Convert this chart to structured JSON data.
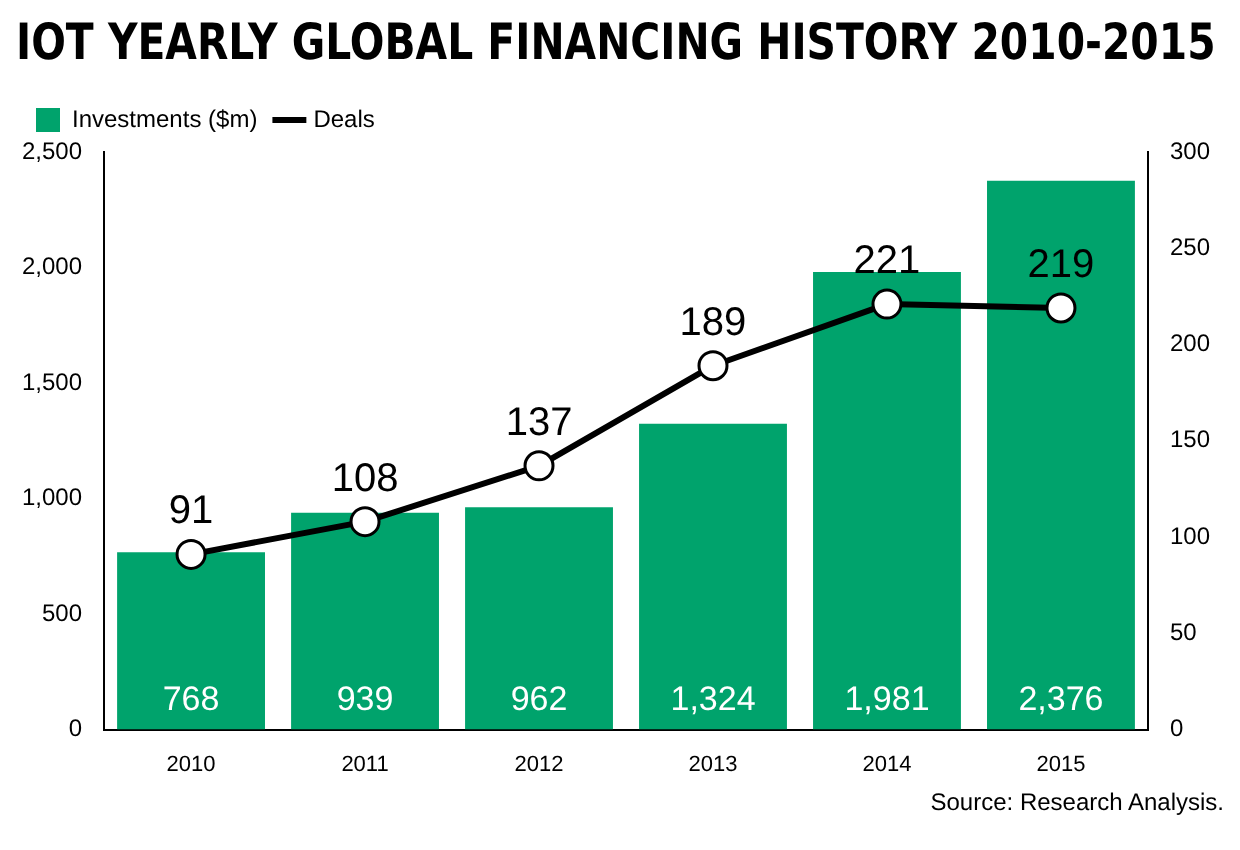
{
  "chart_data": {
    "type": "bar",
    "title": "IOT YEARLY GLOBAL FINANCING HISTORY 2010-2015",
    "categories": [
      "2010",
      "2011",
      "2012",
      "2013",
      "2014",
      "2015"
    ],
    "series": [
      {
        "name": "Investments ($m)",
        "color": "#00a36c",
        "values": [
          768,
          939,
          962,
          1324,
          1981,
          2376
        ],
        "value_labels": [
          "768",
          "939",
          "962",
          "1,324",
          "1,981",
          "2,376"
        ]
      },
      {
        "name": "Deals",
        "type": "line",
        "axis": "y2",
        "color": "#000000",
        "values": [
          91,
          108,
          137,
          189,
          221,
          219
        ],
        "value_labels": [
          "91",
          "108",
          "137",
          "189",
          "221",
          "219"
        ]
      }
    ],
    "ylim": [
      0,
      2500
    ],
    "yticks": [
      0,
      {
        "value": 500,
        "label": "500"
      },
      {
        "value": 1000,
        "label": "1,000"
      },
      {
        "value": 1500,
        "label": "1,500"
      },
      {
        "value": 2000,
        "label": "2,000"
      },
      {
        "value": 2500,
        "label": "2,500"
      }
    ],
    "y2lim": [
      0,
      300
    ],
    "y2ticks": [
      0,
      50,
      100,
      150,
      200,
      250,
      300
    ],
    "legend": "top left",
    "marker": "circle",
    "grid": false,
    "annotations": [
      "Source: Research Analysis."
    ]
  }
}
